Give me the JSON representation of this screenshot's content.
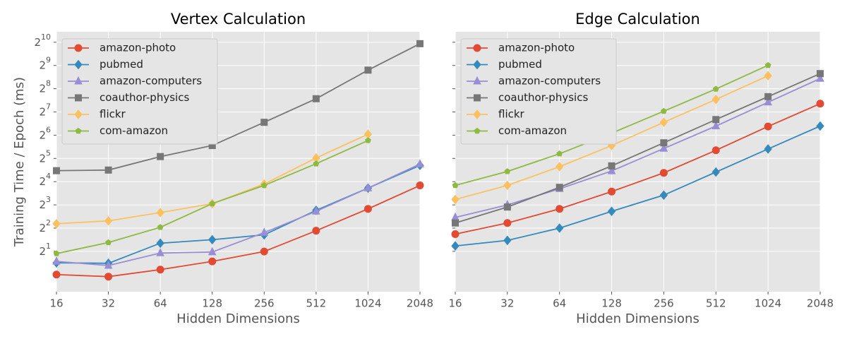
{
  "chart_data": [
    {
      "type": "line",
      "title": "Vertex Calculation",
      "xlabel": "Hidden Dimensions",
      "ylabel": "Training Time / Epoch (ms)",
      "xscale": "log2",
      "yscale": "log2",
      "grid": true,
      "legend": "upper left",
      "ytick_labels": true,
      "xlim": [
        16,
        2048
      ],
      "xticks": [
        16,
        32,
        64,
        128,
        256,
        512,
        1024,
        2048
      ],
      "ylim": [
        0.6,
        1400
      ],
      "yticks": [
        {
          "value": 2,
          "label": "2^1"
        },
        {
          "value": 4,
          "label": "2^2"
        },
        {
          "value": 8,
          "label": "2^3"
        },
        {
          "value": 16,
          "label": "2^4"
        },
        {
          "value": 32,
          "label": "2^5"
        },
        {
          "value": 64,
          "label": "2^6"
        },
        {
          "value": 128,
          "label": "2^7"
        },
        {
          "value": 256,
          "label": "2^8"
        },
        {
          "value": 512,
          "label": "2^9"
        },
        {
          "value": 1024,
          "label": "2^10"
        }
      ],
      "x": [
        16,
        32,
        64,
        128,
        256,
        512,
        1024,
        2048
      ],
      "series": [
        {
          "name": "amazon-photo",
          "color": "#E24A33",
          "marker": "circle",
          "values": [
            1.0,
            0.94,
            1.16,
            1.48,
            1.99,
            3.7,
            7.1,
            14.3
          ]
        },
        {
          "name": "pubmed",
          "color": "#348ABD",
          "marker": "diamond",
          "values": [
            1.42,
            1.4,
            2.55,
            2.83,
            3.27,
            6.8,
            13.2,
            26
          ]
        },
        {
          "name": "amazon-computers",
          "color": "#988ED5",
          "marker": "triangle",
          "values": [
            1.48,
            1.31,
            1.9,
            1.96,
            3.5,
            6.6,
            13.2,
            27
          ]
        },
        {
          "name": "coauthor-physics",
          "color": "#777777",
          "marker": "square",
          "values": [
            22.2,
            22.6,
            33.8,
            47,
            94,
            190,
            446,
            982
          ]
        },
        {
          "name": "flickr",
          "color": "#FBC15E",
          "marker": "diamond",
          "values": [
            4.56,
            4.96,
            6.36,
            8.3,
            14.9,
            32.4,
            66,
            null
          ]
        },
        {
          "name": "com-amazon",
          "color": "#8EBA42",
          "marker": "pentagon",
          "values": [
            1.87,
            2.6,
            4.1,
            8.3,
            14.3,
            27.3,
            54.6,
            null
          ]
        }
      ]
    },
    {
      "type": "line",
      "title": "Edge Calculation",
      "xlabel": "Hidden Dimensions",
      "xscale": "log2",
      "yscale": "log2",
      "grid": true,
      "legend": "upper left",
      "ytick_labels": false,
      "xlim": [
        16,
        2048
      ],
      "xticks": [
        16,
        32,
        64,
        128,
        256,
        512,
        1024,
        2048
      ],
      "ylim": [
        0.6,
        1400
      ],
      "yticks": [
        2,
        4,
        8,
        16,
        32,
        64,
        128,
        256,
        512,
        1024
      ],
      "x": [
        16,
        32,
        64,
        128,
        256,
        512,
        1024,
        2048
      ],
      "series": [
        {
          "name": "amazon-photo",
          "color": "#E24A33",
          "marker": "circle",
          "values": [
            3.34,
            4.66,
            7.1,
            11.9,
            20.8,
            40.8,
            83,
            164
          ]
        },
        {
          "name": "pubmed",
          "color": "#348ABD",
          "marker": "diamond",
          "values": [
            2.35,
            2.77,
            4.0,
            6.6,
            10.7,
            21.3,
            42.4,
            84
          ]
        },
        {
          "name": "amazon-computers",
          "color": "#988ED5",
          "marker": "triangle",
          "values": [
            5.5,
            8.0,
            12.9,
            22,
            43,
            84,
            171,
            347
          ]
        },
        {
          "name": "coauthor-physics",
          "color": "#777777",
          "marker": "square",
          "values": [
            4.66,
            7.5,
            13.5,
            25.6,
            51,
            102,
            202,
            402
          ]
        },
        {
          "name": "flickr",
          "color": "#FBC15E",
          "marker": "diamond",
          "values": [
            9.4,
            14.3,
            25,
            47,
            94,
            186,
            377,
            null
          ]
        },
        {
          "name": "com-amazon",
          "color": "#8EBA42",
          "marker": "pentagon",
          "values": [
            14.3,
            21.7,
            36.8,
            68,
            131,
            254,
            515,
            null
          ]
        }
      ]
    }
  ]
}
